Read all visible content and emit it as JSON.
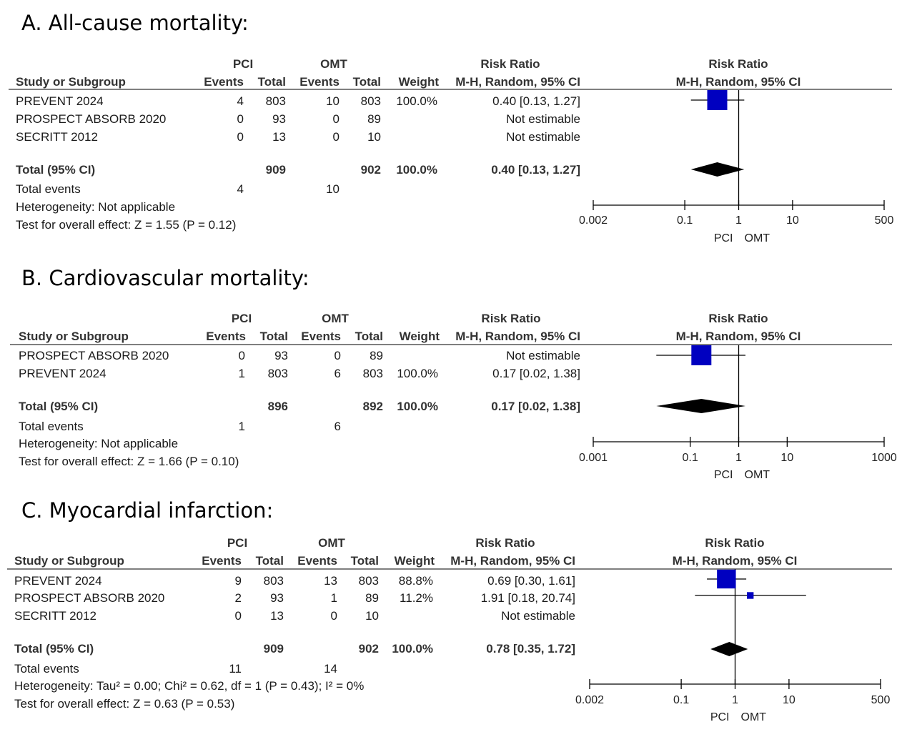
{
  "labels": {
    "study_col": "Study or Subgroup",
    "pci": "PCI",
    "omt": "OMT",
    "events": "Events",
    "total": "Total",
    "weight": "Weight",
    "risk_ratio": "Risk Ratio",
    "method": "M-H, Random, 95% CI",
    "total_row": "Total (95% CI)",
    "total_events": "Total events",
    "favours_left": "PCI",
    "favours_right": "OMT"
  },
  "colors": {
    "marker": "#0000c0",
    "rule": "#7f7f7f"
  },
  "chart_data": [
    {
      "type": "forest",
      "title": "A. All-cause mortality:",
      "x_scale": "log",
      "xlim": [
        0.002,
        500
      ],
      "ticks": [
        "0.002",
        "0.1",
        "1",
        "10",
        "500"
      ],
      "studies": [
        {
          "name": "PREVENT 2024",
          "pci_events": "4",
          "pci_total": "803",
          "omt_events": "10",
          "omt_total": "803",
          "weight": "100.0%",
          "ci_text": "0.40 [0.13, 1.27]",
          "rr": 0.4,
          "lo": 0.13,
          "hi": 1.27,
          "w": 100
        },
        {
          "name": "PROSPECT ABSORB 2020",
          "pci_events": "0",
          "pci_total": "93",
          "omt_events": "0",
          "omt_total": "89",
          "weight": "",
          "ci_text": "Not estimable"
        },
        {
          "name": "SECRITT 2012",
          "pci_events": "0",
          "pci_total": "13",
          "omt_events": "0",
          "omt_total": "10",
          "weight": "",
          "ci_text": "Not estimable"
        }
      ],
      "total": {
        "pci_total": "909",
        "omt_total": "902",
        "weight": "100.0%",
        "ci_text": "0.40 [0.13, 1.27]",
        "rr": 0.4,
        "lo": 0.13,
        "hi": 1.27
      },
      "total_events": {
        "pci": "4",
        "omt": "10"
      },
      "heterogeneity": "Heterogeneity: Not applicable",
      "overall_effect": "Test for overall effect: Z = 1.55 (P = 0.12)"
    },
    {
      "type": "forest",
      "title": "B. Cardiovascular mortality:",
      "x_scale": "log",
      "xlim": [
        0.001,
        1000
      ],
      "ticks": [
        "0.001",
        "0.1",
        "1",
        "10",
        "1000"
      ],
      "studies": [
        {
          "name": "PROSPECT ABSORB 2020",
          "pci_events": "0",
          "pci_total": "93",
          "omt_events": "0",
          "omt_total": "89",
          "weight": "",
          "ci_text": "Not estimable"
        },
        {
          "name": "PREVENT 2024",
          "pci_events": "1",
          "pci_total": "803",
          "omt_events": "6",
          "omt_total": "803",
          "weight": "100.0%",
          "ci_text": "0.17 [0.02, 1.38]",
          "rr": 0.17,
          "lo": 0.02,
          "hi": 1.38,
          "w": 100
        }
      ],
      "total": {
        "pci_total": "896",
        "omt_total": "892",
        "weight": "100.0%",
        "ci_text": "0.17 [0.02, 1.38]",
        "rr": 0.17,
        "lo": 0.02,
        "hi": 1.38
      },
      "total_events": {
        "pci": "1",
        "omt": "6"
      },
      "heterogeneity": "Heterogeneity: Not applicable",
      "overall_effect": "Test for overall effect: Z = 1.66 (P = 0.10)"
    },
    {
      "type": "forest",
      "title": "C. Myocardial infarction:",
      "x_scale": "log",
      "xlim": [
        0.002,
        500
      ],
      "ticks": [
        "0.002",
        "0.1",
        "1",
        "10",
        "500"
      ],
      "studies": [
        {
          "name": "PREVENT 2024",
          "pci_events": "9",
          "pci_total": "803",
          "omt_events": "13",
          "omt_total": "803",
          "weight": "88.8%",
          "ci_text": "0.69 [0.30, 1.61]",
          "rr": 0.69,
          "lo": 0.3,
          "hi": 1.61,
          "w": 88.8
        },
        {
          "name": "PROSPECT ABSORB 2020",
          "pci_events": "2",
          "pci_total": "93",
          "omt_events": "1",
          "omt_total": "89",
          "weight": "11.2%",
          "ci_text": "1.91 [0.18, 20.74]",
          "rr": 1.91,
          "lo": 0.18,
          "hi": 20.74,
          "w": 11.2
        },
        {
          "name": "SECRITT 2012",
          "pci_events": "0",
          "pci_total": "13",
          "omt_events": "0",
          "omt_total": "10",
          "weight": "",
          "ci_text": "Not estimable"
        }
      ],
      "total": {
        "pci_total": "909",
        "omt_total": "902",
        "weight": "100.0%",
        "ci_text": "0.78 [0.35, 1.72]",
        "rr": 0.78,
        "lo": 0.35,
        "hi": 1.72
      },
      "total_events": {
        "pci": "11",
        "omt": "14"
      },
      "heterogeneity": "Heterogeneity: Tau² = 0.00; Chi² = 0.62, df = 1 (P = 0.43); I² = 0%",
      "overall_effect": "Test for overall effect: Z = 0.63 (P = 0.53)"
    }
  ]
}
